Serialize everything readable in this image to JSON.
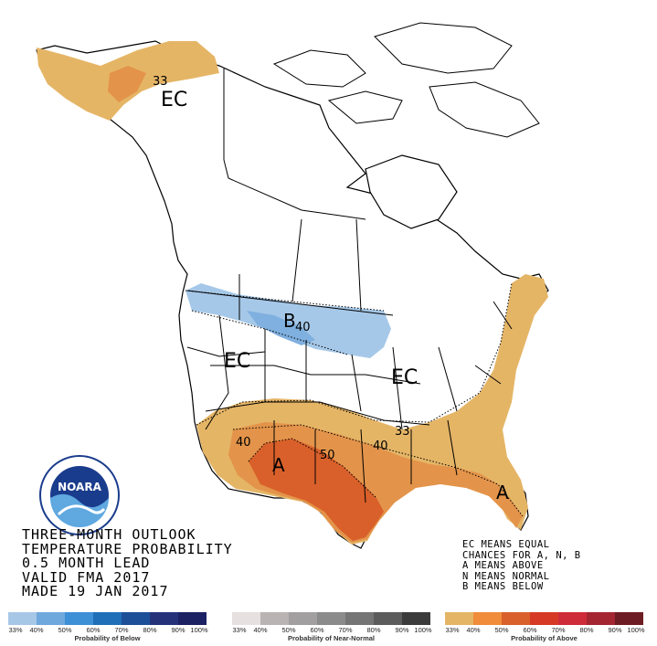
{
  "map": {
    "region_labels": [
      "EC",
      "B",
      "EC",
      "EC",
      "A",
      "A"
    ],
    "contour_labels": [
      "33",
      "40",
      "40",
      "50",
      "40",
      "33"
    ],
    "colors": {
      "below_33": "#a6c8e8",
      "below_40": "#7fb0df",
      "above_33": "#e5b566",
      "above_40": "#e3944a",
      "above_50": "#d9602a",
      "land": "#ffffff",
      "border": "#000000"
    }
  },
  "title_block": {
    "line1": "THREE-MONTH OUTLOOK",
    "line2": "TEMPERATURE PROBABILITY",
    "line3": "0.5 MONTH LEAD",
    "line4": "VALID FMA 2017",
    "line5": "MADE 19 JAN 2017"
  },
  "key": {
    "line1": "EC MEANS EQUAL",
    "line2": "CHANCES FOR A, N, B",
    "line3": "A MEANS ABOVE",
    "line4": "N MEANS NORMAL",
    "line5": "B MEANS BELOW"
  },
  "logo": {
    "text": "NOARA",
    "ring_text": "NATIONAL OCEANIC AND ATMOSPHERIC ADMINISTRATION · U.S. DEPARTMENT OF COMMERCE"
  },
  "scales": {
    "below": {
      "title": "Probability of Below",
      "ticks": [
        "33%",
        "40%",
        "50%",
        "60%",
        "70%",
        "80%",
        "90%",
        "100%"
      ],
      "colors": [
        "#a7c7e7",
        "#6fa8dc",
        "#3d8fd6",
        "#1f6fb8",
        "#1c4f98",
        "#25327a",
        "#1c2163"
      ]
    },
    "normal": {
      "title": "Probability of Near-Normal",
      "ticks": [
        "33%",
        "40%",
        "50%",
        "60%",
        "70%",
        "80%",
        "90%",
        "100%"
      ],
      "colors": [
        "#e6e0e0",
        "#b9b3b3",
        "#a19f9f",
        "#8b8b8b",
        "#757575",
        "#5c5c5c",
        "#3b3b3b"
      ]
    },
    "above": {
      "title": "Probability of Above",
      "ticks": [
        "33%",
        "40%",
        "50%",
        "60%",
        "70%",
        "80%",
        "90%",
        "100%"
      ],
      "colors": [
        "#e5b566",
        "#f08c3a",
        "#d9602a",
        "#d63a26",
        "#cf2c3a",
        "#a32631",
        "#6e1c23"
      ]
    }
  }
}
